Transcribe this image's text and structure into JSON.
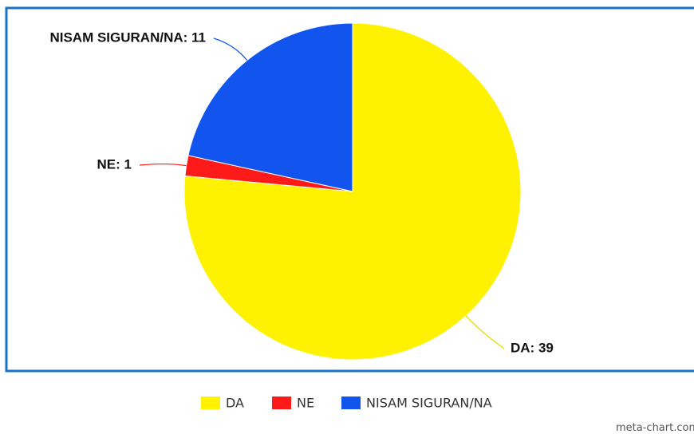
{
  "chart_data": {
    "type": "pie",
    "categories": [
      "DA",
      "NE",
      "NISAM SIGURAN/NA"
    ],
    "values": [
      39,
      1,
      11
    ],
    "value_labels": [
      "DA: 39",
      "NE: 1",
      "NISAM SIGURAN/NA: 11"
    ],
    "colors": [
      "#fff200",
      "#ff1a1a",
      "#1155ee"
    ],
    "legend": "bottom",
    "watermark": "meta-chart.com"
  }
}
